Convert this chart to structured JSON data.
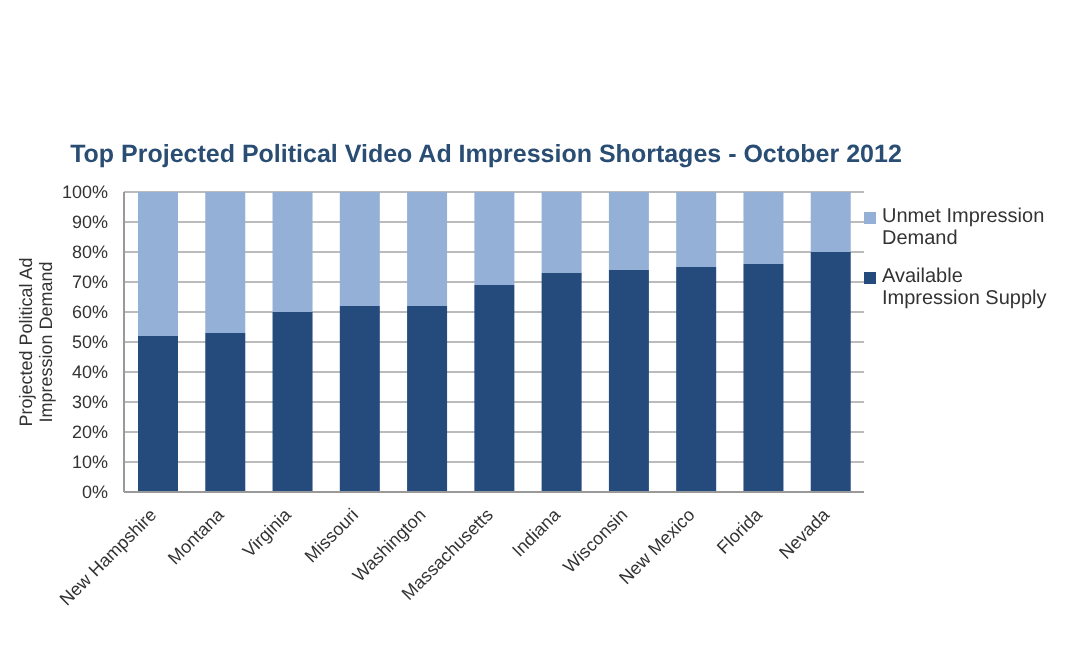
{
  "chart_data": {
    "type": "bar",
    "title": "Top Projected Political Video Ad Impression Shortages - October 2012",
    "ylabel": "Projected Political Ad Impression Demand",
    "categories": [
      "New Hampshire",
      "Montana",
      "Virginia",
      "Missouri",
      "Washington",
      "Massachusetts",
      "Indiana",
      "Wisconsin",
      "New Mexico",
      "Florida",
      "Nevada"
    ],
    "stacked": true,
    "series": [
      {
        "name": "Available Impression Supply",
        "color": "#254a7c",
        "values": [
          52,
          53,
          60,
          62,
          62,
          69,
          73,
          74,
          75,
          76,
          80
        ]
      },
      {
        "name": "Unmet Impression Demand",
        "color": "#95b0d6",
        "values": [
          48,
          47,
          40,
          38,
          38,
          31,
          27,
          26,
          25,
          24,
          20
        ]
      }
    ],
    "ylim": [
      0,
      100
    ],
    "yticks": [
      {
        "value": 0,
        "label": "0%"
      },
      {
        "value": 10,
        "label": "10%"
      },
      {
        "value": 20,
        "label": "20%"
      },
      {
        "value": 30,
        "label": "30%"
      },
      {
        "value": 40,
        "label": "40%"
      },
      {
        "value": 50,
        "label": "50%"
      },
      {
        "value": 60,
        "label": "60%"
      },
      {
        "value": 70,
        "label": "70%"
      },
      {
        "value": 80,
        "label": "80%"
      },
      {
        "value": 90,
        "label": "90%"
      },
      {
        "value": 100,
        "label": "100%"
      }
    ],
    "grid": "y",
    "legend": "right"
  }
}
